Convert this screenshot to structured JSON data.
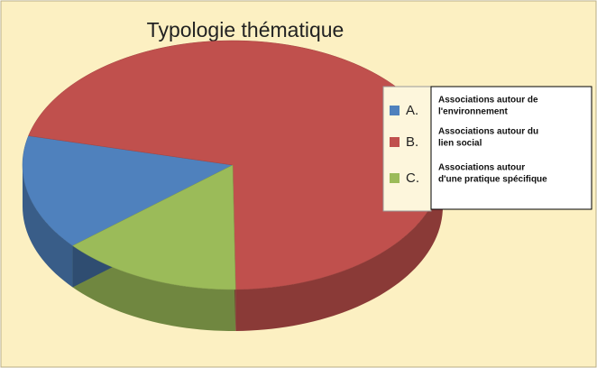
{
  "chart_data": {
    "type": "pie3d",
    "title": "Typologie thématique",
    "categories": [
      "A.",
      "B.",
      "C."
    ],
    "descriptions": [
      [
        "Associations autour de",
        "l'environnement"
      ],
      [
        "Associations autour du",
        "lien social"
      ],
      [
        "Associations autour",
        "d'une pratique spécifique"
      ]
    ],
    "values": [
      15,
      71,
      14
    ],
    "colors": [
      "#4f81bd",
      "#c0504d",
      "#9bbb59"
    ]
  }
}
